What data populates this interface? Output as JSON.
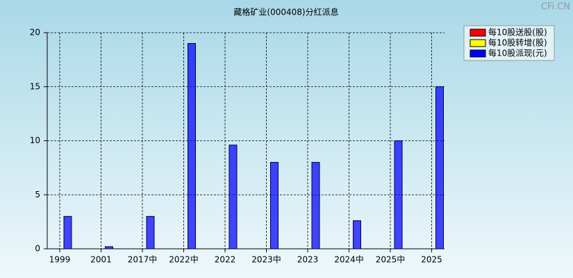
{
  "chart_data": {
    "type": "bar",
    "title": "藏格矿业(000408)分红派息",
    "watermark": "CFi.CN",
    "categories": [
      "1999",
      "2001",
      "2017中",
      "2022中",
      "2022",
      "2023中",
      "2023",
      "2024中",
      "2025中",
      "2025"
    ],
    "series": [
      {
        "name": "每10股送股(股)",
        "color": "#ff0000",
        "values": [
          null,
          null,
          null,
          null,
          null,
          null,
          null,
          null,
          null,
          null
        ]
      },
      {
        "name": "每10股转增(股)",
        "color": "#ffff00",
        "values": [
          null,
          null,
          null,
          null,
          null,
          null,
          null,
          null,
          null,
          null
        ]
      },
      {
        "name": "每10股派现(元)",
        "color": "#0000ff",
        "values": [
          3,
          0.2,
          3,
          19,
          9.6,
          8,
          8,
          2.6,
          10,
          15
        ]
      }
    ],
    "ylim": [
      0,
      20
    ],
    "yticks": [
      0,
      5,
      10,
      15,
      20
    ],
    "grid": true,
    "legend": "upper right"
  }
}
